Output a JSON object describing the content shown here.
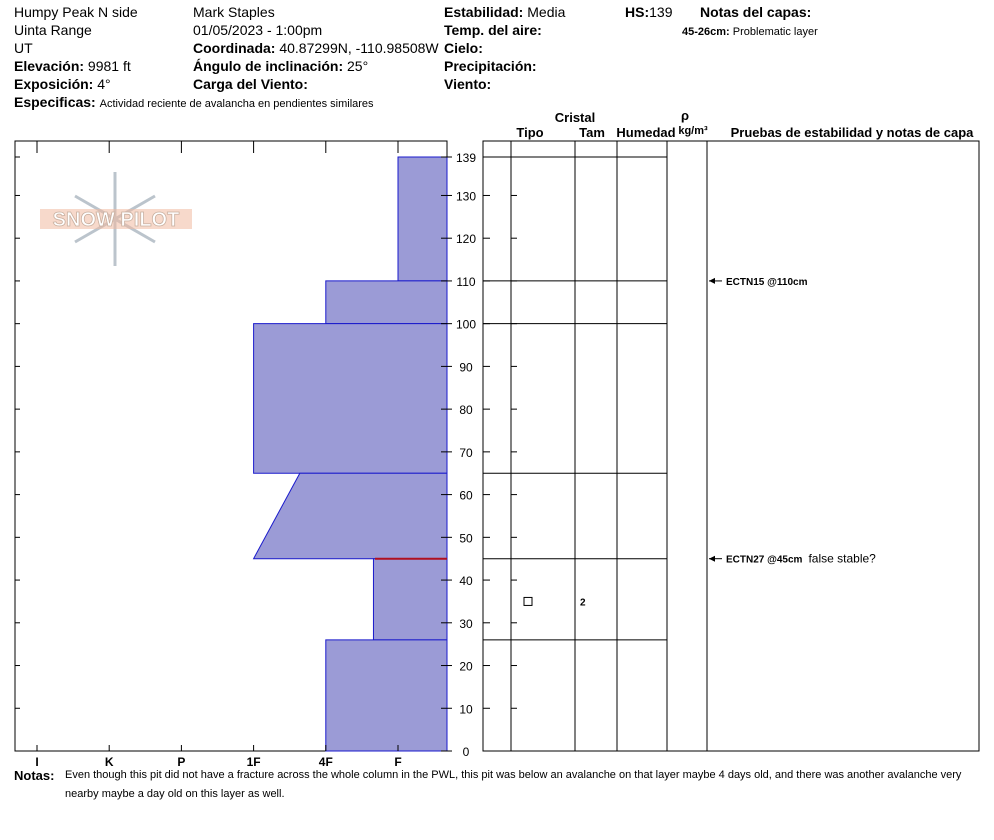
{
  "header": {
    "location": "Humpy Peak N side",
    "range": "Uinta Range",
    "state": "UT",
    "elevation": {
      "label": "Elevación:",
      "value": "9981 ft"
    },
    "aspect": {
      "label": "Exposición:",
      "value": "4°"
    },
    "specifics": {
      "label": "Especificas:",
      "value": "Actividad reciente de avalancha en pendientes similares"
    },
    "observer": "Mark Staples",
    "datetime": "01/05/2023 - 1:00pm",
    "coordinates": {
      "label": "Coordinada:",
      "value": "40.87299N, -110.98508W"
    },
    "slope_angle": {
      "label": "Ángulo de inclinación:",
      "value": "25°"
    },
    "wind_loading": {
      "label": "Carga del Viento:"
    },
    "stability": {
      "label": "Estabilidad:",
      "value": "Media"
    },
    "air_temp": {
      "label": "Temp. del aire:"
    },
    "sky": {
      "label": "Cielo:"
    },
    "precipitation": {
      "label": "Precipitación:"
    },
    "wind": {
      "label": "Viento:"
    },
    "hs": {
      "label": "HS:",
      "value": 139
    },
    "layer_notes": {
      "label": "Notas del capas:",
      "items": [
        {
          "range": "45-26cm:",
          "note": "Problematic layer"
        }
      ]
    }
  },
  "profile": {
    "logo": "SNOW PILOT",
    "hardness_labels": [
      "I",
      "K",
      "P",
      "1F",
      "4F",
      "F"
    ],
    "ylim": [
      0,
      139
    ],
    "yticks": [
      0,
      10,
      20,
      30,
      40,
      50,
      60,
      70,
      80,
      90,
      100,
      110,
      120,
      130,
      139
    ],
    "layers": [
      {
        "top": 139,
        "bottom": 110,
        "hardness_top": 5,
        "hardness_bottom": 5
      },
      {
        "top": 110,
        "bottom": 100,
        "hardness_top": 4,
        "hardness_bottom": 4
      },
      {
        "top": 100,
        "bottom": 65,
        "hardness_top": 3,
        "hardness_bottom": 3
      },
      {
        "top": 65,
        "bottom": 45,
        "hardness_top": 3.64,
        "hardness_bottom": 3
      },
      {
        "top": 45,
        "bottom": 26,
        "hardness_top": 4.66,
        "hardness_bottom": 4.66
      },
      {
        "top": 26,
        "bottom": 0,
        "hardness_top": 4,
        "hardness_bottom": 4
      }
    ],
    "concern_height": 45
  },
  "columns": {
    "crystal": "Cristal",
    "type": "Tipo",
    "size": "Tam",
    "moisture": "Humedad",
    "density_symbol": "ρ",
    "density_unit": "kg/m³",
    "tests": "Pruebas de estabilidad y notas de capa"
  },
  "crystals": [
    {
      "height": 35,
      "size": 2
    }
  ],
  "tests": [
    {
      "height": 110,
      "label": "ECTN15 @110cm"
    },
    {
      "height": 45,
      "label": "ECTN27 @45cm",
      "note": "false stable?"
    }
  ],
  "notes": {
    "label": "Notas:",
    "text": "Even though this pit did not have a fracture across the whole column in the PWL, this pit was below an avalanche on that layer maybe 4 days old, and there was another avalanche very nearby maybe a day old on this layer as well."
  }
}
